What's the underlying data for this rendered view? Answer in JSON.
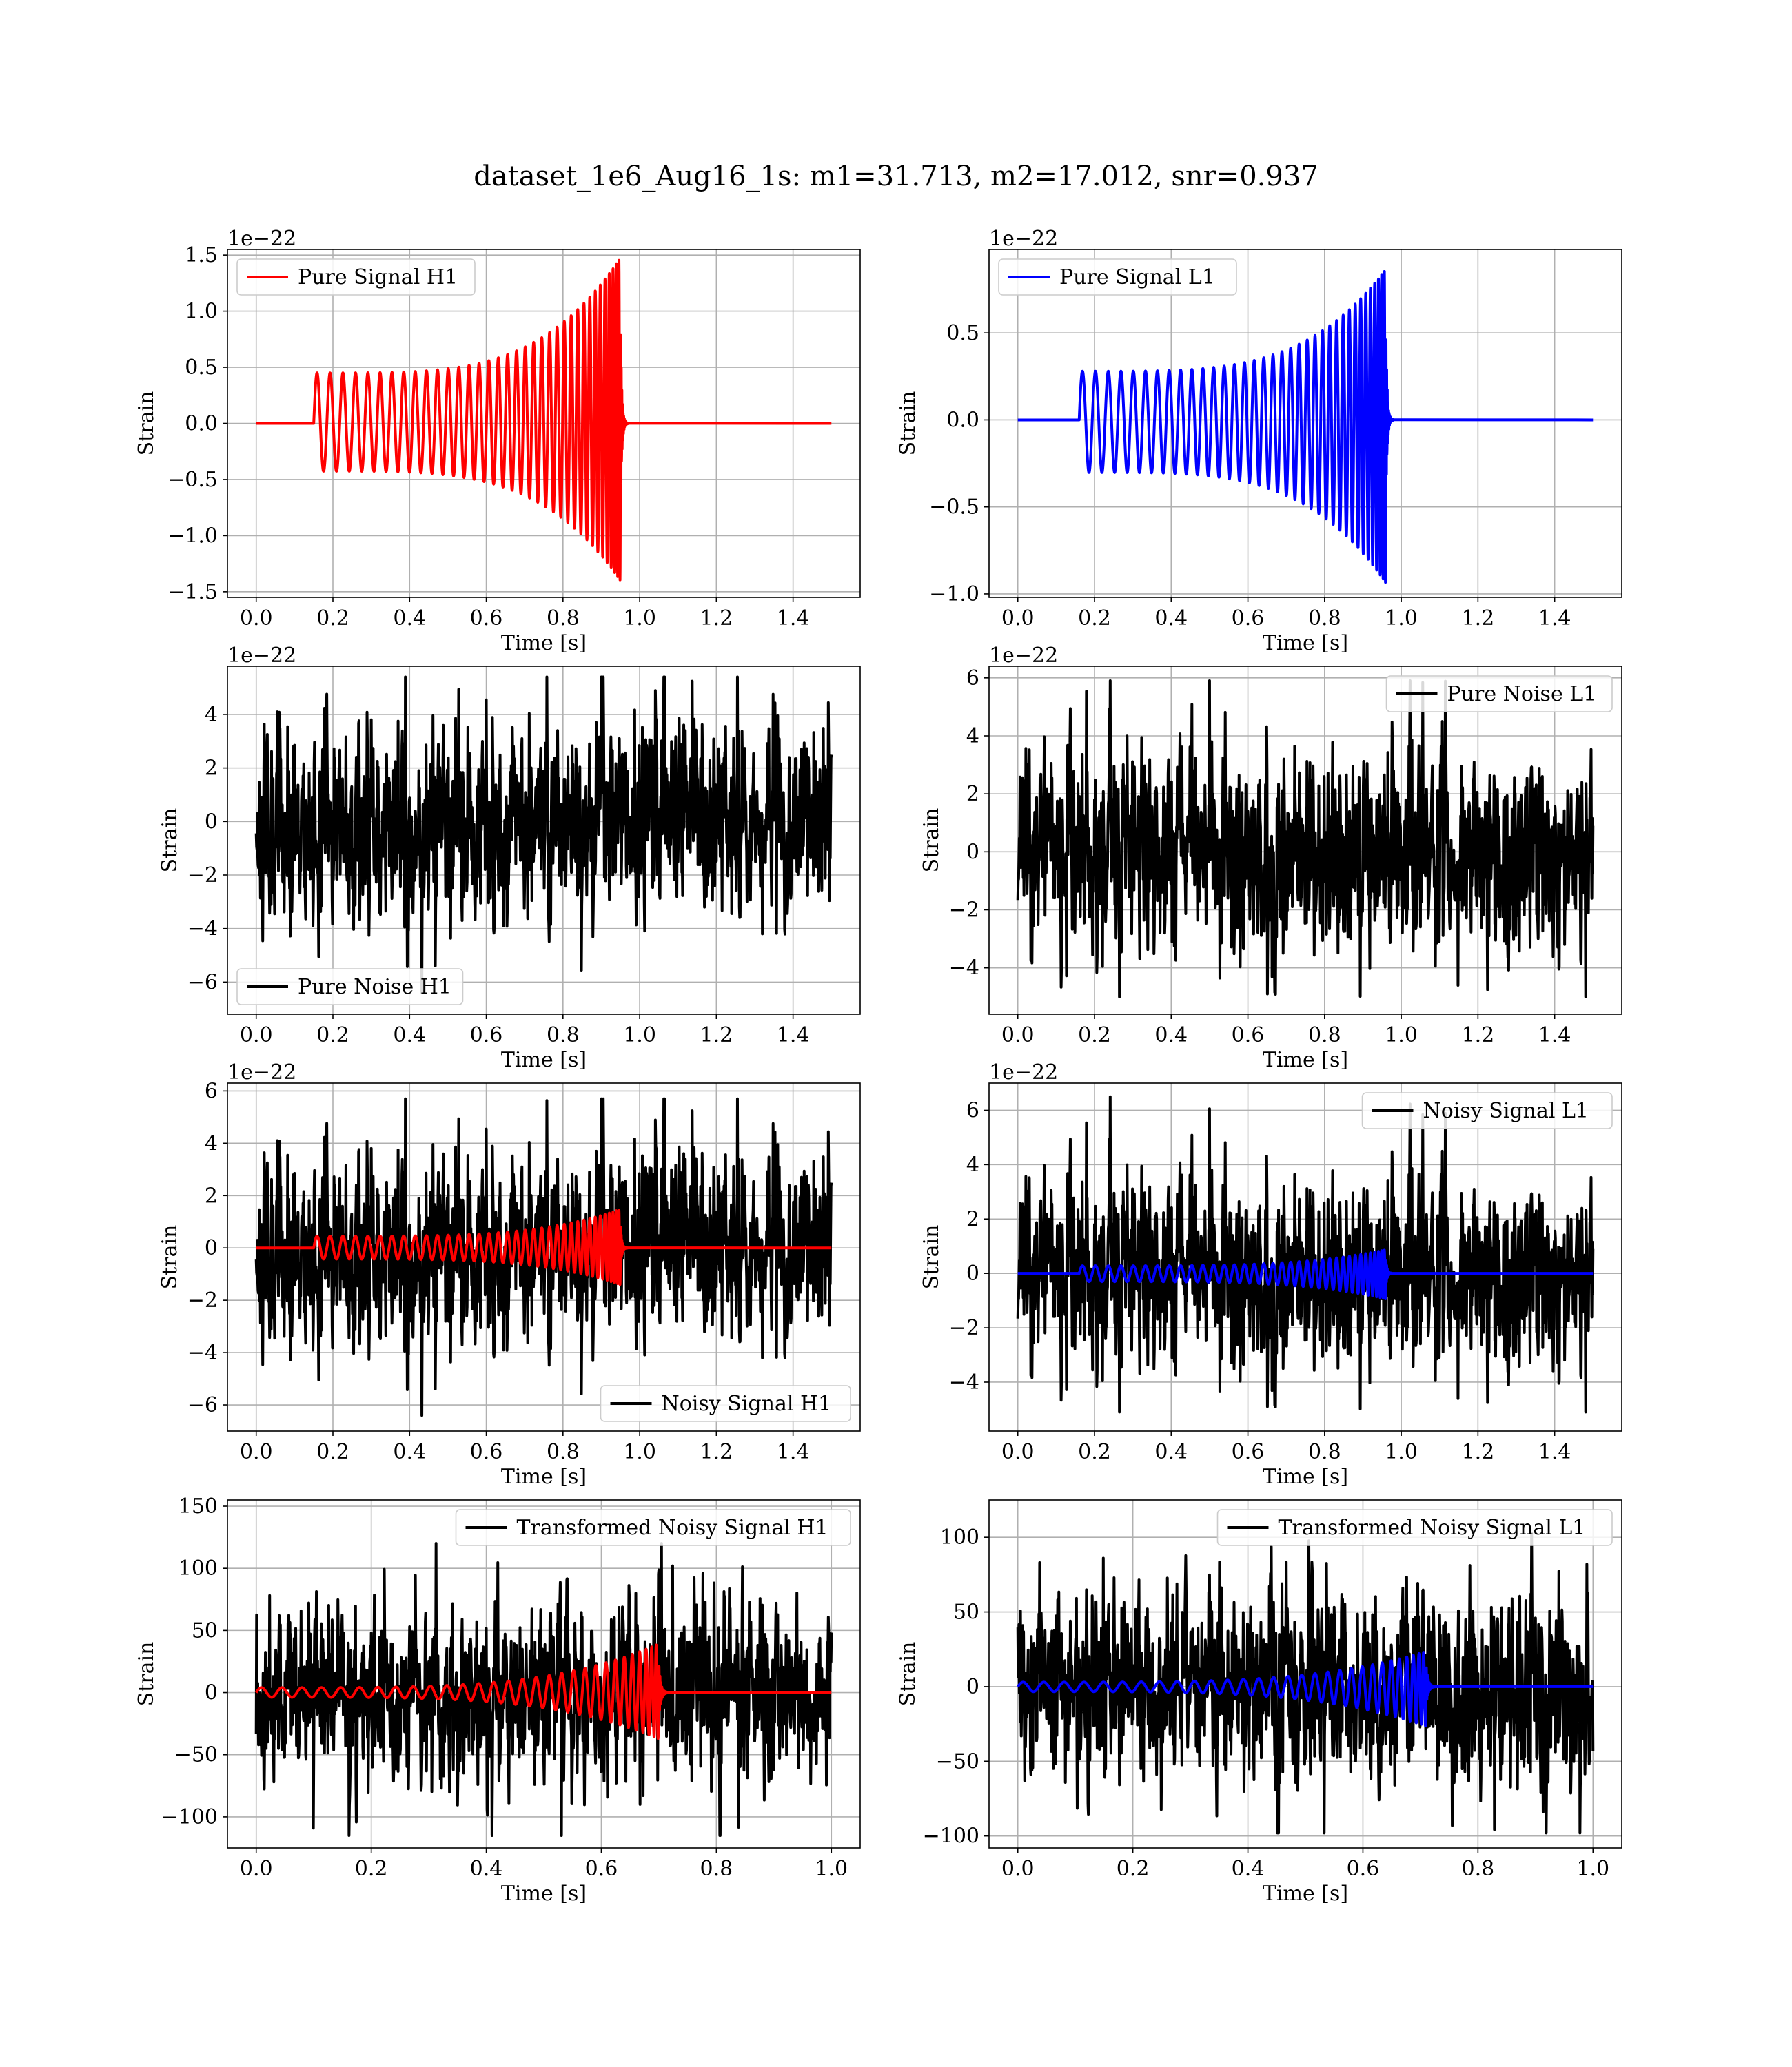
{
  "figure": {
    "title": "dataset_1e6_Aug16_1s: m1=31.713, m2=17.012, snr=0.937"
  },
  "colors": {
    "h1_signal": "#ff0000",
    "l1_signal": "#0000ff",
    "noise": "#000000",
    "grid": "#b0b0b0"
  },
  "chart_data": [
    {
      "id": "pure-signal-h1",
      "type": "line",
      "xlabel": "Time [s]",
      "ylabel": "Strain",
      "offset_text": "1e−22",
      "xlim": [
        -0.075,
        1.575
      ],
      "ylim": [
        -1.55,
        1.55
      ],
      "xticks": [
        0.0,
        0.2,
        0.4,
        0.6,
        0.8,
        1.0,
        1.2,
        1.4
      ],
      "xtick_labels": [
        "0.0",
        "0.2",
        "0.4",
        "0.6",
        "0.8",
        "1.0",
        "1.2",
        "1.4"
      ],
      "yticks": [
        -1.5,
        -1.0,
        -0.5,
        0.0,
        0.5,
        1.0,
        1.5
      ],
      "ytick_labels": [
        "−1.5",
        "−1.0",
        "−0.5",
        "0.0",
        "0.5",
        "1.0",
        "1.5"
      ],
      "legend": {
        "label": "Pure Signal H1",
        "loc": "upper left",
        "color": "#ff0000"
      },
      "grid": true,
      "series": [
        {
          "kind": "chirp",
          "color": "#ff0000",
          "t_start": 0.15,
          "t_merge": 0.95,
          "t_end": 1.5,
          "amp_start": 0.45,
          "amp_peak": 1.5,
          "amp_min_neg": -1.42,
          "cycles": 36
        }
      ]
    },
    {
      "id": "pure-signal-l1",
      "type": "line",
      "xlabel": "Time [s]",
      "ylabel": "Strain",
      "offset_text": "1e−22",
      "xlim": [
        -0.075,
        1.575
      ],
      "ylim": [
        -1.02,
        0.98
      ],
      "xticks": [
        0.0,
        0.2,
        0.4,
        0.6,
        0.8,
        1.0,
        1.2,
        1.4
      ],
      "xtick_labels": [
        "0.0",
        "0.2",
        "0.4",
        "0.6",
        "0.8",
        "1.0",
        "1.2",
        "1.4"
      ],
      "yticks": [
        -1.0,
        -0.5,
        0.0,
        0.5
      ],
      "ytick_labels": [
        "−1.0",
        "−0.5",
        "0.0",
        "0.5"
      ],
      "legend": {
        "label": "Pure Signal L1",
        "loc": "upper left",
        "color": "#0000ff"
      },
      "grid": true,
      "series": [
        {
          "kind": "chirp",
          "color": "#0000ff",
          "t_start": 0.16,
          "t_merge": 0.96,
          "t_end": 1.5,
          "amp_start": 0.28,
          "amp_peak": 0.88,
          "amp_min_neg": -0.95,
          "cycles": 36
        }
      ]
    },
    {
      "id": "pure-noise-h1",
      "type": "line",
      "xlabel": "Time [s]",
      "ylabel": "Strain",
      "offset_text": "1e−22",
      "xlim": [
        -0.075,
        1.575
      ],
      "ylim": [
        -7.2,
        5.8
      ],
      "xticks": [
        0.0,
        0.2,
        0.4,
        0.6,
        0.8,
        1.0,
        1.2,
        1.4
      ],
      "xtick_labels": [
        "0.0",
        "0.2",
        "0.4",
        "0.6",
        "0.8",
        "1.0",
        "1.2",
        "1.4"
      ],
      "yticks": [
        -6,
        -4,
        -2,
        0,
        2,
        4
      ],
      "ytick_labels": [
        "−6",
        "−4",
        "−2",
        "0",
        "2",
        "4"
      ],
      "legend": {
        "label": "Pure Noise H1",
        "loc": "lower left",
        "color": "#000000"
      },
      "grid": true,
      "series": [
        {
          "kind": "noise",
          "color": "#000000",
          "t_start": 0.0,
          "t_end": 1.5,
          "seed": 11,
          "min": -6.5,
          "max": 5.4,
          "sigma": 1.6
        }
      ]
    },
    {
      "id": "pure-noise-l1",
      "type": "line",
      "xlabel": "Time [s]",
      "ylabel": "Strain",
      "offset_text": "1e−22",
      "xlim": [
        -0.075,
        1.575
      ],
      "ylim": [
        -5.6,
        6.4
      ],
      "xticks": [
        0.0,
        0.2,
        0.4,
        0.6,
        0.8,
        1.0,
        1.2,
        1.4
      ],
      "xtick_labels": [
        "0.0",
        "0.2",
        "0.4",
        "0.6",
        "0.8",
        "1.0",
        "1.2",
        "1.4"
      ],
      "yticks": [
        -4,
        -2,
        0,
        2,
        4,
        6
      ],
      "ytick_labels": [
        "−4",
        "−2",
        "0",
        "2",
        "4",
        "6"
      ],
      "legend": {
        "label": "Pure Noise L1",
        "loc": "upper right",
        "color": "#000000"
      },
      "grid": true,
      "series": [
        {
          "kind": "noise",
          "color": "#000000",
          "t_start": 0.0,
          "t_end": 1.5,
          "seed": 23,
          "min": -5.0,
          "max": 5.9,
          "sigma": 1.5
        }
      ]
    },
    {
      "id": "noisy-signal-h1",
      "type": "line",
      "xlabel": "Time [s]",
      "ylabel": "Strain",
      "offset_text": "1e−22",
      "xlim": [
        -0.075,
        1.575
      ],
      "ylim": [
        -7.0,
        6.3
      ],
      "xticks": [
        0.0,
        0.2,
        0.4,
        0.6,
        0.8,
        1.0,
        1.2,
        1.4
      ],
      "xtick_labels": [
        "0.0",
        "0.2",
        "0.4",
        "0.6",
        "0.8",
        "1.0",
        "1.2",
        "1.4"
      ],
      "yticks": [
        -6,
        -4,
        -2,
        0,
        2,
        4,
        6
      ],
      "ytick_labels": [
        "−6",
        "−4",
        "−2",
        "0",
        "2",
        "4",
        "6"
      ],
      "legend": {
        "label": "Noisy Signal H1",
        "loc": "lower right",
        "color": "#000000"
      },
      "grid": true,
      "series": [
        {
          "kind": "noise",
          "color": "#000000",
          "t_start": 0.0,
          "t_end": 1.5,
          "seed": 11,
          "min": -6.5,
          "max": 5.7,
          "sigma": 1.6
        },
        {
          "kind": "chirp",
          "color": "#ff0000",
          "t_start": 0.15,
          "t_merge": 0.95,
          "t_end": 1.5,
          "amp_start": 0.45,
          "amp_peak": 1.5,
          "amp_min_neg": -1.42,
          "cycles": 36
        }
      ]
    },
    {
      "id": "noisy-signal-l1",
      "type": "line",
      "xlabel": "Time [s]",
      "ylabel": "Strain",
      "offset_text": "1e−22",
      "xlim": [
        -0.075,
        1.575
      ],
      "ylim": [
        -5.8,
        7.0
      ],
      "xticks": [
        0.0,
        0.2,
        0.4,
        0.6,
        0.8,
        1.0,
        1.2,
        1.4
      ],
      "xtick_labels": [
        "0.0",
        "0.2",
        "0.4",
        "0.6",
        "0.8",
        "1.0",
        "1.2",
        "1.4"
      ],
      "yticks": [
        -4,
        -2,
        0,
        2,
        4,
        6
      ],
      "ytick_labels": [
        "−4",
        "−2",
        "0",
        "2",
        "4",
        "6"
      ],
      "legend": {
        "label": "Noisy Signal L1",
        "loc": "upper right",
        "color": "#000000"
      },
      "grid": true,
      "series": [
        {
          "kind": "noise",
          "color": "#000000",
          "t_start": 0.0,
          "t_end": 1.5,
          "seed": 23,
          "min": -5.1,
          "max": 6.5,
          "sigma": 1.5
        },
        {
          "kind": "chirp",
          "color": "#0000ff",
          "t_start": 0.16,
          "t_merge": 0.96,
          "t_end": 1.5,
          "amp_start": 0.28,
          "amp_peak": 0.88,
          "amp_min_neg": -0.95,
          "cycles": 36
        }
      ]
    },
    {
      "id": "transformed-noisy-signal-h1",
      "type": "line",
      "xlabel": "Time [s]",
      "ylabel": "Strain",
      "offset_text": "",
      "xlim": [
        -0.05,
        1.05
      ],
      "ylim": [
        -125,
        155
      ],
      "xticks": [
        0.0,
        0.2,
        0.4,
        0.6,
        0.8,
        1.0
      ],
      "xtick_labels": [
        "0.0",
        "0.2",
        "0.4",
        "0.6",
        "0.8",
        "1.0"
      ],
      "yticks": [
        -100,
        -50,
        0,
        50,
        100,
        150
      ],
      "ytick_labels": [
        "−100",
        "−50",
        "0",
        "50",
        "100",
        "150"
      ],
      "legend": {
        "label": "Transformed Noisy Signal H1",
        "loc": "upper right",
        "color": "#000000"
      },
      "grid": true,
      "series": [
        {
          "kind": "noise",
          "color": "#000000",
          "t_start": 0.0,
          "t_end": 1.0,
          "seed": 37,
          "min": -115,
          "max": 120,
          "sigma": 30
        },
        {
          "kind": "chirp",
          "color": "#ff0000",
          "t_start": 0.0,
          "t_merge": 0.7,
          "t_end": 1.0,
          "amp_start": 4,
          "amp_peak": 40,
          "amp_min_neg": -38,
          "cycles": 30
        }
      ]
    },
    {
      "id": "transformed-noisy-signal-l1",
      "type": "line",
      "xlabel": "Time [s]",
      "ylabel": "Strain",
      "offset_text": "",
      "xlim": [
        -0.05,
        1.05
      ],
      "ylim": [
        -108,
        125
      ],
      "xticks": [
        0.0,
        0.2,
        0.4,
        0.6,
        0.8,
        1.0
      ],
      "xtick_labels": [
        "0.0",
        "0.2",
        "0.4",
        "0.6",
        "0.8",
        "1.0"
      ],
      "yticks": [
        -100,
        -50,
        0,
        50,
        100
      ],
      "ytick_labels": [
        "−100",
        "−50",
        "0",
        "50",
        "100"
      ],
      "legend": {
        "label": "Transformed Noisy Signal L1",
        "loc": "upper right",
        "color": "#000000"
      },
      "grid": true,
      "series": [
        {
          "kind": "noise",
          "color": "#000000",
          "t_start": 0.0,
          "t_end": 1.0,
          "seed": 53,
          "min": -98,
          "max": 110,
          "sigma": 28
        },
        {
          "kind": "chirp",
          "color": "#0000ff",
          "t_start": 0.0,
          "t_merge": 0.71,
          "t_end": 1.0,
          "amp_start": 3,
          "amp_peak": 24,
          "amp_min_neg": -27,
          "cycles": 30
        }
      ]
    }
  ]
}
